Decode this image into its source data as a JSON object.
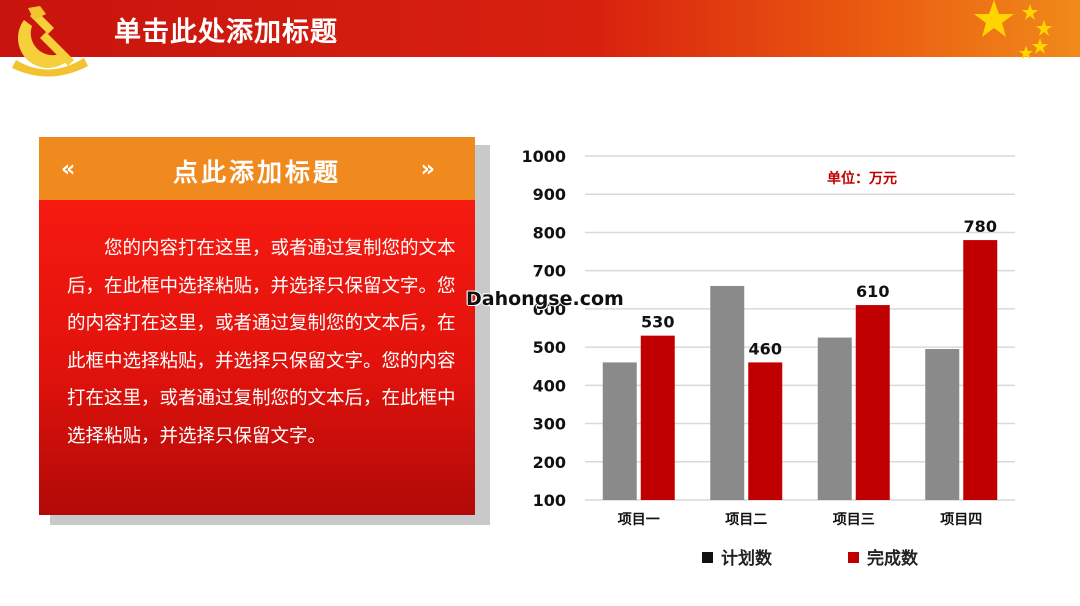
{
  "slide": {
    "title": "单击此处添加标题",
    "watermark": "Dahongse.com"
  },
  "card": {
    "title": "点此添加标题",
    "arrow_left": "«",
    "arrow_right": "»",
    "body": "您的内容打在这里，或者通过复制您的文本后，在此框中选择粘贴，并选择只保留文字。您的内容打在这里，或者通过复制您的文本后，在此框中选择粘贴，并选择只保留文字。您的内容打在这里，或者通过复制您的文本后，在此框中选择粘贴，并选择只保留文字。"
  },
  "colors": {
    "header_red": "#c8140e",
    "header_orange": "#f08a1a",
    "card_orange": "#f18a1e",
    "card_red": "#e0120c",
    "plan_gray": "#8a8a8a",
    "done_red": "#c00000"
  },
  "icons": [
    "party-emblem-icon",
    "stars-icon",
    "chevron-left-icon",
    "chevron-right-icon"
  ],
  "chart_data": {
    "type": "bar",
    "categories": [
      "项目一",
      "项目二",
      "项目三",
      "项目四"
    ],
    "series": [
      {
        "name": "计划数",
        "values": [
          460,
          660,
          525,
          495
        ],
        "data_labels": [
          "",
          "",
          "",
          ""
        ]
      },
      {
        "name": "完成数",
        "values": [
          530,
          460,
          610,
          780
        ],
        "data_labels": [
          "530",
          "460",
          "610",
          "780"
        ]
      }
    ],
    "ylim": [
      100,
      1000
    ],
    "yticks": [
      100,
      200,
      300,
      400,
      500,
      600,
      700,
      800,
      900,
      1000
    ],
    "annotation": "单位：万元",
    "grid": true,
    "legend_position": "bottom"
  }
}
